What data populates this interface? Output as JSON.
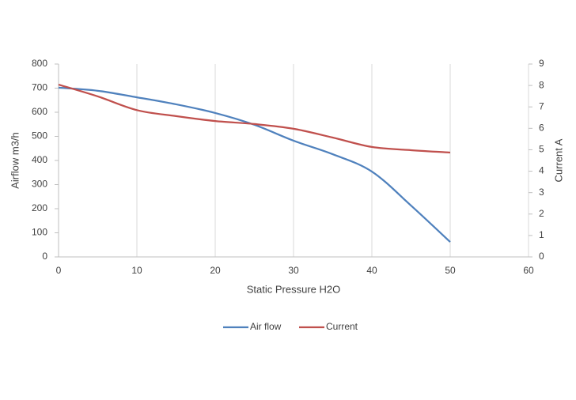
{
  "chart_data": {
    "type": "line",
    "x_label": "Static Pressure H2O",
    "y_label": "Airflow m3/h",
    "y2_label": "Current A",
    "x": [
      0,
      5,
      10,
      15,
      20,
      25,
      30,
      35,
      40,
      45,
      50
    ],
    "series": [
      {
        "name": "Air flow",
        "color": "#4f81bd",
        "values": [
          702,
          689,
          662,
          633,
          597,
          548,
          482,
          426,
          354,
          213,
          62
        ]
      },
      {
        "name": "Current",
        "color": "#c0504d",
        "axis": "y2",
        "values": [
          8.04,
          7.49,
          6.85,
          6.57,
          6.34,
          6.2,
          5.98,
          5.57,
          5.13,
          4.98,
          4.87
        ]
      }
    ],
    "xlim": [
      0,
      60
    ],
    "xticks": [
      0,
      10,
      20,
      30,
      40,
      50,
      60
    ],
    "ylim": [
      0,
      800
    ],
    "yticks": [
      0,
      100,
      200,
      300,
      400,
      500,
      600,
      700,
      800
    ],
    "y2lim": [
      0,
      9
    ],
    "y2ticks": [
      0,
      1,
      2,
      3,
      4,
      5,
      6,
      7,
      8,
      9
    ],
    "grid": true,
    "legend": "bottom"
  }
}
